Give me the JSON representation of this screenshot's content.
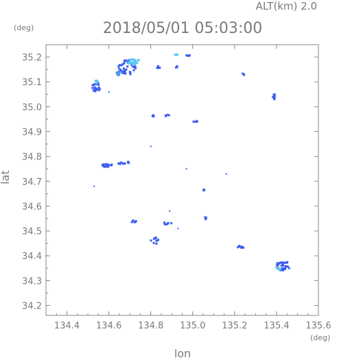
{
  "header": {
    "altitude_label": "ALT(km) 2.0",
    "timestamp": "2018/05/01 05:03:00"
  },
  "chart_data": {
    "type": "scatter",
    "title": "2018/05/01 05:03:00",
    "subtitle": "ALT(km) 2.0",
    "xlabel": "lon",
    "ylabel": "lat",
    "x_unit": "(deg)",
    "y_unit": "(deg)",
    "xlim": [
      134.3,
      135.6
    ],
    "ylim": [
      34.16,
      35.25
    ],
    "x_ticks": [
      "134.4",
      "134.6",
      "134.8",
      "135.0",
      "135.2",
      "135.4",
      "135.6"
    ],
    "y_ticks": [
      "34.2",
      "34.3",
      "34.4",
      "34.5",
      "34.6",
      "34.7",
      "34.8",
      "34.9",
      "35.0",
      "35.1",
      "35.2"
    ],
    "grid": false,
    "colors": {
      "strong": "#3b5cf0",
      "medium": "#4f8ff0",
      "light": "#5ac8f0",
      "axis": "#888888"
    },
    "clusters": [
      {
        "lon": 134.54,
        "lat": 35.08,
        "rx": 0.02,
        "ry": 0.02,
        "count": 26,
        "color": "#3b5cf0"
      },
      {
        "lon": 134.545,
        "lat": 35.1,
        "rx": 0.01,
        "ry": 0.01,
        "count": 8,
        "color": "#5ac8f0"
      },
      {
        "lon": 134.69,
        "lat": 35.16,
        "rx": 0.045,
        "ry": 0.03,
        "count": 40,
        "color": "#3b5cf0"
      },
      {
        "lon": 134.72,
        "lat": 35.18,
        "rx": 0.03,
        "ry": 0.012,
        "count": 18,
        "color": "#5ac8f0"
      },
      {
        "lon": 134.65,
        "lat": 35.135,
        "rx": 0.02,
        "ry": 0.01,
        "count": 10,
        "color": "#4f8ff0"
      },
      {
        "lon": 134.92,
        "lat": 35.21,
        "rx": 0.008,
        "ry": 0.003,
        "count": 5,
        "color": "#5ac8f0"
      },
      {
        "lon": 134.98,
        "lat": 35.205,
        "rx": 0.012,
        "ry": 0.003,
        "count": 4,
        "color": "#3b5cf0"
      },
      {
        "lon": 134.84,
        "lat": 35.16,
        "rx": 0.02,
        "ry": 0.004,
        "count": 4,
        "color": "#3b5cf0"
      },
      {
        "lon": 134.93,
        "lat": 35.16,
        "rx": 0.015,
        "ry": 0.004,
        "count": 3,
        "color": "#3b5cf0"
      },
      {
        "lon": 135.24,
        "lat": 35.13,
        "rx": 0.006,
        "ry": 0.004,
        "count": 3,
        "color": "#3b5cf0"
      },
      {
        "lon": 135.39,
        "lat": 35.04,
        "rx": 0.008,
        "ry": 0.01,
        "count": 6,
        "color": "#3b5cf0"
      },
      {
        "lon": 134.81,
        "lat": 34.965,
        "rx": 0.01,
        "ry": 0.004,
        "count": 5,
        "color": "#3b5cf0"
      },
      {
        "lon": 134.88,
        "lat": 34.965,
        "rx": 0.012,
        "ry": 0.004,
        "count": 4,
        "color": "#3b5cf0"
      },
      {
        "lon": 135.02,
        "lat": 34.94,
        "rx": 0.02,
        "ry": 0.003,
        "count": 4,
        "color": "#3b5cf0"
      },
      {
        "lon": 134.59,
        "lat": 34.765,
        "rx": 0.025,
        "ry": 0.008,
        "count": 16,
        "color": "#3b5cf0"
      },
      {
        "lon": 134.66,
        "lat": 34.775,
        "rx": 0.04,
        "ry": 0.006,
        "count": 10,
        "color": "#3b5cf0"
      },
      {
        "lon": 135.05,
        "lat": 34.665,
        "rx": 0.006,
        "ry": 0.005,
        "count": 3,
        "color": "#3b5cf0"
      },
      {
        "lon": 134.72,
        "lat": 34.54,
        "rx": 0.015,
        "ry": 0.006,
        "count": 6,
        "color": "#3b5cf0"
      },
      {
        "lon": 134.88,
        "lat": 34.53,
        "rx": 0.02,
        "ry": 0.008,
        "count": 7,
        "color": "#3b5cf0"
      },
      {
        "lon": 135.06,
        "lat": 34.55,
        "rx": 0.01,
        "ry": 0.01,
        "count": 4,
        "color": "#3b5cf0"
      },
      {
        "lon": 134.82,
        "lat": 34.46,
        "rx": 0.02,
        "ry": 0.015,
        "count": 10,
        "color": "#3b5cf0"
      },
      {
        "lon": 135.23,
        "lat": 34.435,
        "rx": 0.015,
        "ry": 0.006,
        "count": 10,
        "color": "#3b5cf0"
      },
      {
        "lon": 135.43,
        "lat": 34.36,
        "rx": 0.035,
        "ry": 0.02,
        "count": 30,
        "color": "#3b5cf0"
      },
      {
        "lon": 135.41,
        "lat": 34.35,
        "rx": 0.012,
        "ry": 0.008,
        "count": 8,
        "color": "#5ac8f0"
      }
    ],
    "points": [
      {
        "lon": 134.6,
        "lat": 35.06,
        "color": "#3b5cf0"
      },
      {
        "lon": 134.8,
        "lat": 34.84,
        "color": "#3b5cf0"
      },
      {
        "lon": 134.53,
        "lat": 34.68,
        "color": "#3b5cf0"
      },
      {
        "lon": 134.97,
        "lat": 34.75,
        "color": "#3b5cf0"
      },
      {
        "lon": 135.16,
        "lat": 34.73,
        "color": "#3b5cf0"
      },
      {
        "lon": 134.89,
        "lat": 34.58,
        "color": "#3b5cf0"
      },
      {
        "lon": 134.93,
        "lat": 34.51,
        "color": "#3b5cf0"
      }
    ]
  }
}
